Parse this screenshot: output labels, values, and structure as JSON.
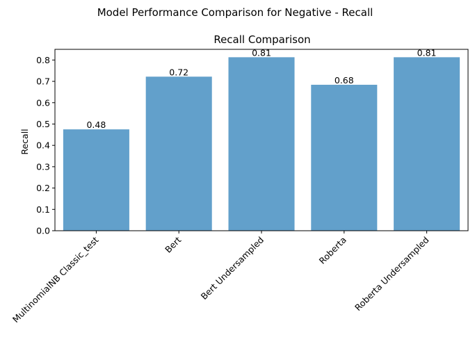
{
  "chart_data": {
    "type": "bar",
    "suptitle": "Model Performance Comparison for Negative - Recall",
    "title": "Recall Comparison",
    "xlabel": "",
    "ylabel": "Recall",
    "categories": [
      "MultinomialNB Classic_test",
      "Bert",
      "Bert Undersampled",
      "Roberta",
      "Roberta Undersampled"
    ],
    "values": [
      0.475,
      0.722,
      0.813,
      0.684,
      0.813
    ],
    "value_labels": [
      "0.48",
      "0.72",
      "0.81",
      "0.68",
      "0.81"
    ],
    "ylim": [
      0,
      0.85
    ],
    "yticks": [
      0.0,
      0.1,
      0.2,
      0.3,
      0.4,
      0.5,
      0.6,
      0.7,
      0.8
    ],
    "ytick_labels": [
      "0.0",
      "0.1",
      "0.2",
      "0.3",
      "0.4",
      "0.5",
      "0.6",
      "0.7",
      "0.8"
    ],
    "bar_color": "#62a0cb",
    "grid": false
  }
}
